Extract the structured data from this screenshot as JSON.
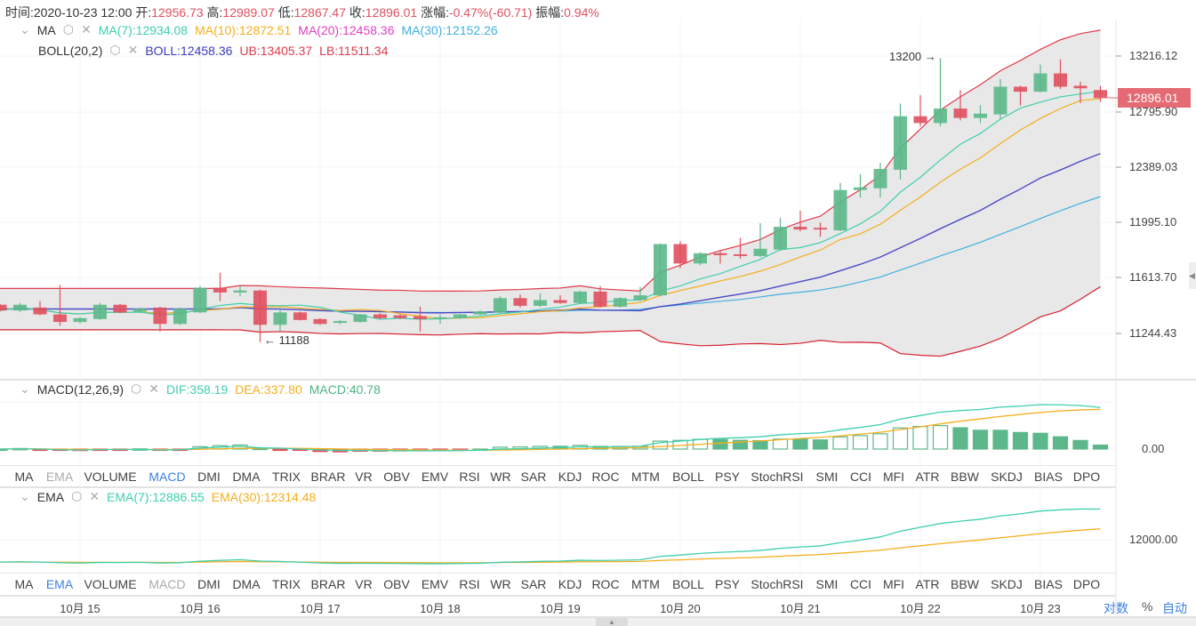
{
  "info": {
    "time_label": "时间:",
    "time": "2020-10-23 12:00",
    "open_label": "开:",
    "open": "12956.73",
    "high_label": "高:",
    "high": "12989.07",
    "low_label": "低:",
    "low": "12867.47",
    "close_label": "收:",
    "close": "12896.01",
    "change_label": "涨幅:",
    "change": "-0.47%(-60.71)",
    "amp_label": "振幅:",
    "amp": "0.94%"
  },
  "ma_legend": {
    "name": "MA",
    "ma7": "MA(7):12934.08",
    "ma10": "MA(10):12872.51",
    "ma20": "MA(20):12458.36",
    "ma30": "MA(30):12152.26"
  },
  "boll_legend": {
    "name": "BOLL(20,2)",
    "mid": "BOLL:12458.36",
    "ub": "UB:13405.37",
    "lb": "LB:11511.34"
  },
  "macd_legend": {
    "name": "MACD(12,26,9)",
    "dif": "DIF:358.19",
    "dea": "DEA:337.80",
    "macd": "MACD:40.78"
  },
  "ema_legend": {
    "name": "EMA",
    "ema7": "EMA(7):12886.55",
    "ema30": "EMA(30):12314.48"
  },
  "tabs": [
    "MA",
    "EMA",
    "VOLUME",
    "MACD",
    "DMI",
    "DMA",
    "TRIX",
    "BRAR",
    "VR",
    "OBV",
    "EMV",
    "RSI",
    "WR",
    "SAR",
    "KDJ",
    "ROC",
    "MTM",
    "BOLL",
    "PSY",
    "StochRSI",
    "SMI",
    "CCI",
    "MFI",
    "ATR",
    "BBW",
    "SKDJ",
    "BIAS",
    "DPO"
  ],
  "tabs1_active": "MACD",
  "tabs1_disabled": "EMA",
  "tabs2_active": "EMA",
  "tabs2_disabled": "MACD",
  "bottom": {
    "log": "对数",
    "pct": "%",
    "auto": "自动"
  },
  "current_price": "12896.01",
  "colors": {
    "up": "#5cb88a",
    "down": "#e0505f",
    "ma7": "#3fcfae",
    "ma10": "#f5ae1c",
    "ma20": "#e040c0",
    "ma30": "#3fb0e0",
    "boll": "#4a4ac8",
    "band": "#e03a4c",
    "accent": "#3d7fe6"
  },
  "chart_data": {
    "type": "candlestick",
    "y_scale": "log",
    "y_ticks": [
      "13216.12",
      "12795.90",
      "12389.03",
      "11995.10",
      "11613.70",
      "11244.43"
    ],
    "x_ticks": [
      "10月 15",
      "10月 16",
      "10月 17",
      "10月 18",
      "10月 19",
      "10月 20",
      "10月 21",
      "10月 22",
      "10月 23"
    ],
    "annotations": {
      "max": "13200",
      "min": "11188"
    },
    "macd_ticks": [
      "0.00"
    ],
    "ema_ticks": [
      "12000.00"
    ],
    "ohlc": [
      [
        11434,
        11440,
        11390,
        11396
      ],
      [
        11396,
        11445,
        11385,
        11434
      ],
      [
        11415,
        11459,
        11364,
        11370
      ],
      [
        11370,
        11566,
        11295,
        11320
      ],
      [
        11320,
        11352,
        11310,
        11345
      ],
      [
        11339,
        11446,
        11335,
        11434
      ],
      [
        11434,
        11440,
        11378,
        11383
      ],
      [
        11389,
        11415,
        11383,
        11408
      ],
      [
        11415,
        11421,
        11257,
        11307
      ],
      [
        11307,
        11415,
        11300,
        11408
      ],
      [
        11383,
        11560,
        11378,
        11548
      ],
      [
        11548,
        11649,
        11459,
        11516
      ],
      [
        11516,
        11560,
        11490,
        11529
      ],
      [
        11529,
        11535,
        11188,
        11301
      ],
      [
        11301,
        11415,
        11263,
        11383
      ],
      [
        11383,
        11390,
        11330,
        11333
      ],
      [
        11339,
        11345,
        11300,
        11307
      ],
      [
        11314,
        11333,
        11305,
        11326
      ],
      [
        11320,
        11372,
        11315,
        11370
      ],
      [
        11370,
        11378,
        11340,
        11345
      ],
      [
        11364,
        11370,
        11340,
        11345
      ],
      [
        11358,
        11421,
        11257,
        11339
      ],
      [
        11345,
        11370,
        11307,
        11351
      ],
      [
        11345,
        11372,
        11340,
        11370
      ],
      [
        11370,
        11396,
        11365,
        11389
      ],
      [
        11383,
        11490,
        11378,
        11478
      ],
      [
        11478,
        11503,
        11415,
        11427
      ],
      [
        11427,
        11510,
        11420,
        11465
      ],
      [
        11465,
        11497,
        11440,
        11446
      ],
      [
        11446,
        11528,
        11440,
        11522
      ],
      [
        11522,
        11560,
        11415,
        11421
      ],
      [
        11421,
        11485,
        11415,
        11478
      ],
      [
        11465,
        11555,
        11460,
        11497
      ],
      [
        11497,
        11850,
        11490,
        11845
      ],
      [
        11845,
        11864,
        11680,
        11712
      ],
      [
        11712,
        11790,
        11700,
        11782
      ],
      [
        11782,
        11795,
        11712,
        11769
      ],
      [
        11775,
        11889,
        11744,
        11763
      ],
      [
        11763,
        11990,
        11755,
        11813
      ],
      [
        11807,
        12028,
        11800,
        11965
      ],
      [
        11965,
        12078,
        11933,
        11946
      ],
      [
        11958,
        11995,
        11895,
        11946
      ],
      [
        11940,
        12275,
        11935,
        12224
      ],
      [
        12224,
        12338,
        12170,
        12243
      ],
      [
        12236,
        12420,
        12170,
        12375
      ],
      [
        12369,
        12856,
        12300,
        12761
      ],
      [
        12761,
        12919,
        12685,
        12710
      ],
      [
        12710,
        13200,
        12685,
        12818
      ],
      [
        12818,
        12957,
        12730,
        12748
      ],
      [
        12748,
        12843,
        12710,
        12780
      ],
      [
        12774,
        13040,
        12740,
        12982
      ],
      [
        12982,
        12990,
        12840,
        12944
      ],
      [
        12944,
        13150,
        12940,
        13083
      ],
      [
        13083,
        13190,
        12965,
        12982
      ],
      [
        12989,
        13020,
        12860,
        12970
      ],
      [
        12956.73,
        12989.07,
        12867.47,
        12896.01
      ]
    ]
  }
}
